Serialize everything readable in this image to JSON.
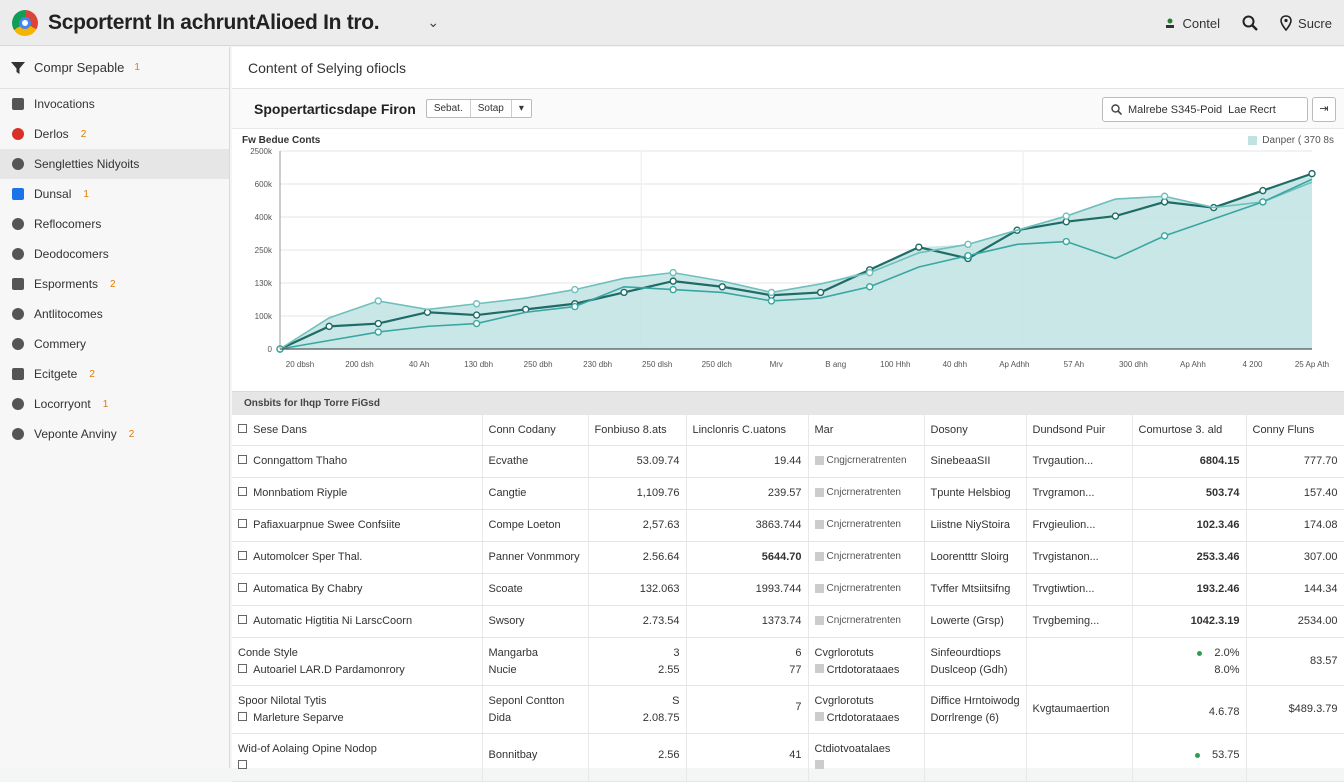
{
  "app": {
    "title": "Scporternt In achruntAlioed In tro.",
    "actions": [
      {
        "label": "Contel",
        "icon": "person-icon"
      },
      {
        "label": "",
        "icon": "search-icon"
      },
      {
        "label": "Sucre",
        "icon": "location-icon"
      }
    ]
  },
  "sidebar": {
    "header": "Compr Sepable",
    "header_badge": "1",
    "items": [
      {
        "label": "Invocations",
        "badge": "",
        "icon": "grid-icon",
        "color": "#555555",
        "active": false
      },
      {
        "label": "Derlos",
        "badge": "2",
        "icon": "calendar-icon",
        "color": "#d93025",
        "active": false
      },
      {
        "label": "Sengletties Nidyoits",
        "badge": "",
        "icon": "link-icon",
        "color": "#555555",
        "active": true
      },
      {
        "label": "Dunsal",
        "badge": "1",
        "icon": "chat-icon",
        "color": "#1a73e8",
        "active": false
      },
      {
        "label": "Reflocomers",
        "badge": "",
        "icon": "gear-icon",
        "color": "#555555",
        "active": false
      },
      {
        "label": "Deodocomers",
        "badge": "",
        "icon": "lock-icon",
        "color": "#555555",
        "active": false
      },
      {
        "label": "Esporments",
        "badge": "2",
        "icon": "box-icon",
        "color": "#555555",
        "active": false
      },
      {
        "label": "Antlitocomes",
        "badge": "",
        "icon": "tools-icon",
        "color": "#555555",
        "active": false
      },
      {
        "label": "Commery",
        "badge": "",
        "icon": "document-icon",
        "color": "#555555",
        "active": false
      },
      {
        "label": "Ecitgete",
        "badge": "2",
        "icon": "people-icon",
        "color": "#555555",
        "active": false
      },
      {
        "label": "Locorryont",
        "badge": "1",
        "icon": "pin-icon",
        "color": "#555555",
        "active": false
      },
      {
        "label": "Veponte Anviny",
        "badge": "2",
        "icon": "file-icon",
        "color": "#555555",
        "active": false
      }
    ]
  },
  "main": {
    "breadcrumb": "Content of Selying ofiocls",
    "panel_title": "Spopertarticsdape Firon",
    "segments": [
      "Sebat.",
      "Sotap",
      "▾"
    ],
    "search_placeholder": "Malrebe S345-Poid",
    "search_suffix": "Lae Recrt",
    "toolbar_btn": "⇥"
  },
  "chart_data": {
    "type": "area",
    "title": "Fw Bedue Conts",
    "legend": "Danper ( 370 8s",
    "y_ticks": [
      "2500k",
      "600k",
      "400k",
      "250k",
      "130k",
      "100k",
      "0"
    ],
    "x_ticks": [
      "20 dbsh",
      "200 dsh",
      "40 Ah",
      "130 dbh",
      "250 dbh",
      "230 dbh",
      "250 dlsh",
      "250 dlch",
      "Mrv",
      "B ang",
      "100 Hhh",
      "40 dhh",
      "Ap Adhh",
      "57 Ah",
      "300 dhh",
      "Ap Ahh",
      "4 200",
      "25 Ap Ath"
    ],
    "ylim": [
      0,
      7
    ],
    "series": [
      {
        "values": [
          0,
          0.8,
          0.9,
          1.3,
          1.2,
          1.4,
          1.6,
          2.0,
          2.4,
          2.2,
          1.9,
          2.0,
          2.8,
          3.6,
          3.2,
          4.2,
          4.5,
          4.7,
          5.2,
          5.0,
          5.6,
          6.2
        ]
      },
      {
        "values": [
          0,
          1.1,
          1.7,
          1.4,
          1.6,
          1.8,
          2.1,
          2.5,
          2.7,
          2.4,
          2.0,
          2.3,
          2.7,
          3.4,
          3.7,
          4.2,
          4.7,
          5.3,
          5.4,
          5.0,
          5.2,
          5.9
        ]
      },
      {
        "values": [
          0,
          0.3,
          0.6,
          0.8,
          0.9,
          1.3,
          1.5,
          2.2,
          2.1,
          2.0,
          1.7,
          1.8,
          2.2,
          2.9,
          3.3,
          3.7,
          3.8,
          3.2,
          4.0,
          4.6,
          5.2,
          6.0
        ]
      }
    ],
    "colors": [
      "#1f6b66",
      "#6fbfbd",
      "#3aa6a2"
    ],
    "fill_color": "#bfe3e3"
  },
  "table": {
    "section_title": "Onsbits for Ihqp Torre FiGsd",
    "columns": [
      "Sese Dans",
      "Conn Codany",
      "Fonbiuso 8.ats",
      "Linclonris C.uatons",
      "Mar",
      "Dosony",
      "Dundsond Puir",
      "Comurtose 3. ald",
      "Conny Fluns"
    ],
    "rows": [
      {
        "name": "Conngattom Thaho",
        "category": "Ecvathe",
        "v1": "53.09.74",
        "v2": "19.44",
        "chip": "Cngjcrneratrenten",
        "desc": "SinebeaaSII",
        "status": "Trvgaution...",
        "v3": "6804.15",
        "v4": "777.70"
      },
      {
        "name": "Monnbatiom Riyple",
        "category": "Cangtie",
        "v1": "1,109.76",
        "v2": "239.57",
        "chip": "Cnjcrneratrenten",
        "desc": "Tpunte Helsbiog",
        "status": "Trvgramon...",
        "v3": "503.74",
        "v4": "157.40"
      },
      {
        "name": "Pafiaxuarpnue Swee Confsiite",
        "category": "Compe Loeton",
        "v1": "2,57.63",
        "v2": "3863.744",
        "chip": "Cnjcrneratrenten",
        "desc": "Liistne NiyStoira",
        "status": "Frvgieulion...",
        "v3": "102.3.46",
        "v4": "174.08"
      },
      {
        "name": "Automolcer Sper Thal.",
        "category": "Panner Vonmmory",
        "v1": "2.56.64",
        "v2": "5644.70",
        "chip": "Cnjcrneratrenten",
        "desc": "Loorentttr Sloirg",
        "status": "Trvgistanon...",
        "v3": "253.3.46",
        "v4": "307.00"
      },
      {
        "name": "Automatica By Chabry",
        "category": "Scoate",
        "v1": "132.063",
        "v2": "1993.744",
        "chip": "Cnjcrneratrenten",
        "desc": "Tvffer Mtsiitsifng",
        "status": "Trvgtiwtion...",
        "v3": "193.2.46",
        "v4": "144.34"
      },
      {
        "name": "Automatic Higtitia Ni LarscCoorn",
        "category": "Swsory",
        "v1": "2.73.54",
        "v2": "1373.74",
        "chip": "Cnjcrneratrenten",
        "desc": "Lowerte (Grsp)",
        "status": "Trvgbeming...",
        "v3": "1042.3.19",
        "v4": "2534.00"
      }
    ],
    "tall_rows": [
      {
        "name_a": "Conde Style",
        "name_b": "Autoariel LAR.D Pardamonrory",
        "cat_a": "Mangarba",
        "cat_b": "Nucie",
        "v1_a": "3",
        "v1_b": "2.55",
        "v2_a": "6",
        "v2_b": "77",
        "chip_a": "Cvgrlorotuts",
        "chip_b": "Crtdotorataaes",
        "desc_a": "Sinfeourdtiops",
        "desc_b": "Duslceop (Gdh)",
        "status": "",
        "v3_a": "2.0%",
        "v3_b": "8.0%",
        "v4": "83.57"
      },
      {
        "name_a": "Spoor Nilotal Tytis",
        "name_b": "Marleture Separve",
        "cat_a": "Seponl Contton",
        "cat_b": "Dida",
        "v1_a": "S",
        "v1_b": "2.08.75",
        "v2_a": "7",
        "v2_b": "",
        "chip_a": "Cvgrlorotuts",
        "chip_b": "Crtdotorataaes",
        "desc_a": "Diffice Hrntoiwodg",
        "desc_b": "Dorrlrenge (6)",
        "status": "Kvgtaumaertion",
        "v3_a": "",
        "v3_b": "4.6.78",
        "v4": "$489.3.79"
      },
      {
        "name_a": "Wid-of Aolaing Opine Nodop",
        "name_b": "",
        "cat_a": "Bonnitbay",
        "cat_b": "",
        "v1_a": "2.56",
        "v1_b": "",
        "v2_a": "41",
        "v2_b": "",
        "chip_a": "Ctdiotvoatalaes",
        "chip_b": "",
        "desc_a": "",
        "desc_b": "",
        "status": "",
        "v3_a": "53.75",
        "v3_b": "",
        "v4": ""
      }
    ]
  }
}
